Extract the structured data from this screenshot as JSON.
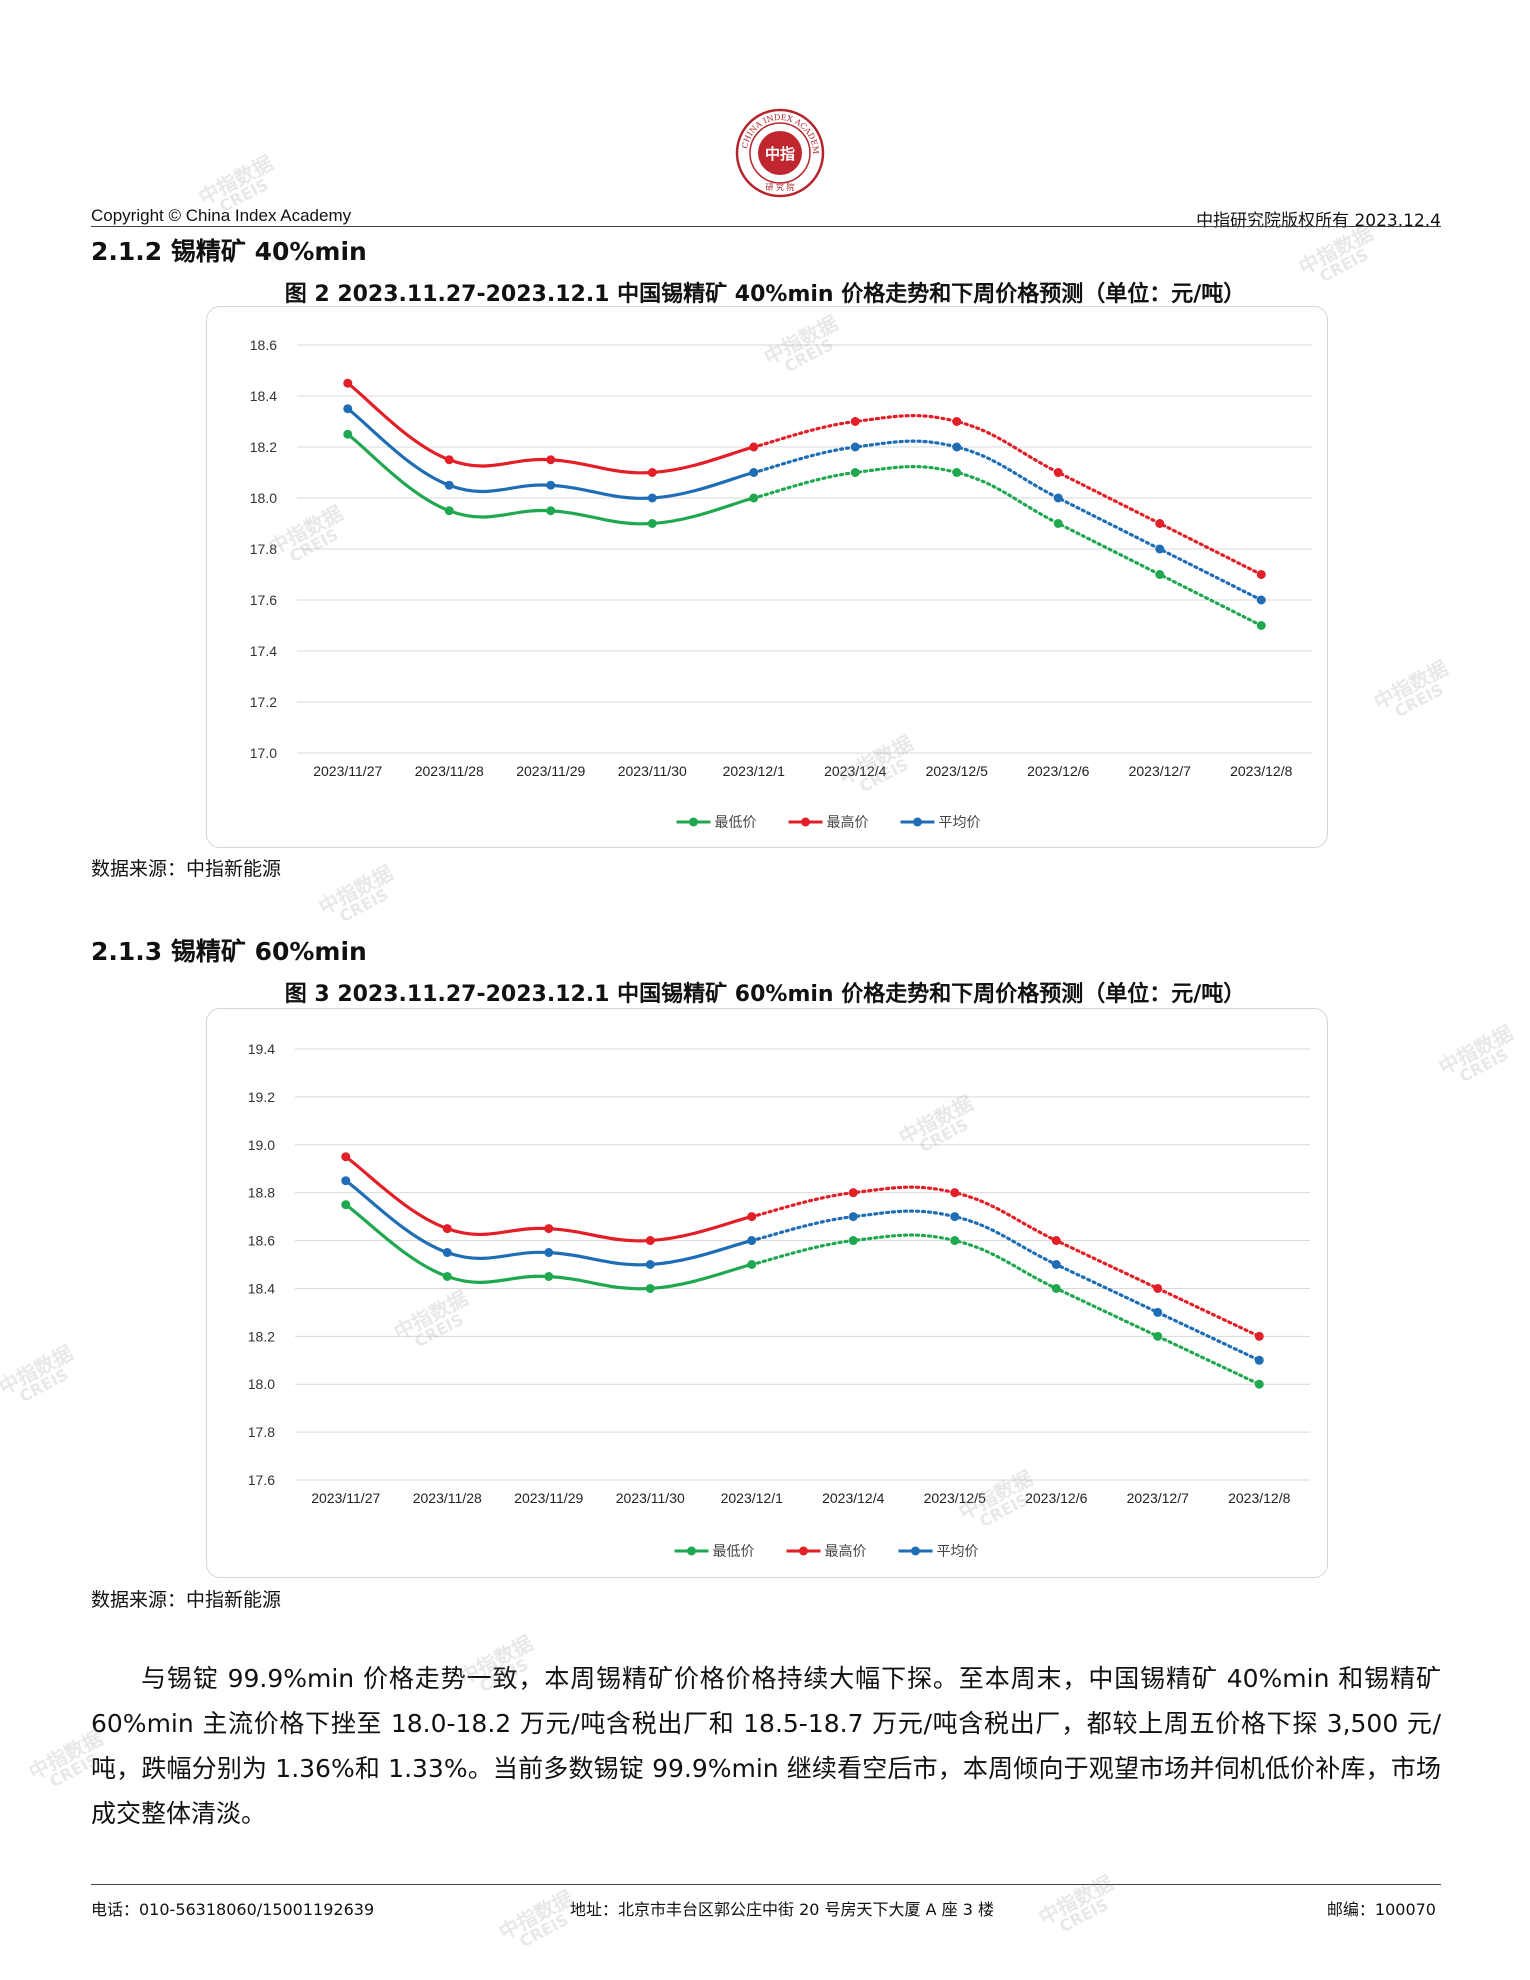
{
  "header": {
    "copyright": "Copyright © China Index Academy",
    "rights": "中指研究院版权所有 2023.12.4",
    "logo_text_ring": "CHINA INDEX ACADEMY",
    "logo_center": "中指",
    "logo_bottom": "研 究 院"
  },
  "section1": {
    "heading": "2.1.2 锡精矿 40%min",
    "figure_title": "图 2 2023.11.27-2023.12.1 中国锡精矿 40%min 价格走势和下周价格预测（单位：元/吨）",
    "source": "数据来源：中指新能源"
  },
  "section2": {
    "heading": "2.1.3 锡精矿 60%min",
    "figure_title": "图 3 2023.11.27-2023.12.1 中国锡精矿 60%min 价格走势和下周价格预测（单位：元/吨）",
    "source": "数据来源：中指新能源"
  },
  "paragraph": "与锡锭 99.9%min 价格走势一致，本周锡精矿价格价格持续大幅下探。至本周末，中国锡精矿 40%min 和锡精矿 60%min 主流价格下挫至 18.0-18.2 万元/吨含税出厂和 18.5-18.7 万元/吨含税出厂，都较上周五价格下探 3,500 元/吨，跌幅分别为 1.36%和 1.33%。当前多数锡锭 99.9%min 继续看空后市，本周倾向于观望市场并伺机低价补库，市场成交整体清淡。",
  "footer": {
    "phone": "电话：010-56318060/15001192639",
    "address": "地址：北京市丰台区郭公庄中街 20 号房天下大厦 A 座 3 楼",
    "postcode": "邮编：100070"
  },
  "watermark": {
    "line1": "中指数据",
    "line2": "CREIS"
  },
  "colors": {
    "low": "#1fa84f",
    "high": "#e21e26",
    "avg": "#1f6db5",
    "grid": "#d9d9d9"
  },
  "chart_data": [
    {
      "type": "line",
      "categories": [
        "2023/11/27",
        "2023/11/28",
        "2023/11/29",
        "2023/11/30",
        "2023/12/1",
        "2023/12/4",
        "2023/12/5",
        "2023/12/6",
        "2023/12/7",
        "2023/12/8"
      ],
      "actual_count": 5,
      "ylim": [
        17.0,
        18.6
      ],
      "yticks": [
        "17.0",
        "17.2",
        "17.4",
        "17.6",
        "17.8",
        "18.0",
        "18.2",
        "18.4",
        "18.6"
      ],
      "series": [
        {
          "name": "最低价",
          "color": "#1fa84f",
          "values": [
            18.25,
            17.95,
            17.95,
            17.9,
            18.0,
            18.1,
            18.1,
            17.9,
            17.7,
            17.5
          ]
        },
        {
          "name": "最高价",
          "color": "#e21e26",
          "values": [
            18.45,
            18.15,
            18.15,
            18.1,
            18.2,
            18.3,
            18.3,
            18.1,
            17.9,
            17.7
          ]
        },
        {
          "name": "平均价",
          "color": "#1f6db5",
          "values": [
            18.35,
            18.05,
            18.05,
            18.0,
            18.1,
            18.2,
            18.2,
            18.0,
            17.8,
            17.6
          ]
        }
      ],
      "grid": true,
      "legend": "bottom"
    },
    {
      "type": "line",
      "categories": [
        "2023/11/27",
        "2023/11/28",
        "2023/11/29",
        "2023/11/30",
        "2023/12/1",
        "2023/12/4",
        "2023/12/5",
        "2023/12/6",
        "2023/12/7",
        "2023/12/8"
      ],
      "actual_count": 5,
      "ylim": [
        17.6,
        19.4
      ],
      "yticks": [
        "17.6",
        "17.8",
        "18.0",
        "18.2",
        "18.4",
        "18.6",
        "18.8",
        "19.0",
        "19.2",
        "19.4"
      ],
      "series": [
        {
          "name": "最低价",
          "color": "#1fa84f",
          "values": [
            18.75,
            18.45,
            18.45,
            18.4,
            18.5,
            18.6,
            18.6,
            18.4,
            18.2,
            18.0
          ]
        },
        {
          "name": "最高价",
          "color": "#e21e26",
          "values": [
            18.95,
            18.65,
            18.65,
            18.6,
            18.7,
            18.8,
            18.8,
            18.6,
            18.4,
            18.2
          ]
        },
        {
          "name": "平均价",
          "color": "#1f6db5",
          "values": [
            18.85,
            18.55,
            18.55,
            18.5,
            18.6,
            18.7,
            18.7,
            18.5,
            18.3,
            18.1
          ]
        }
      ],
      "grid": true,
      "legend": "bottom"
    }
  ]
}
